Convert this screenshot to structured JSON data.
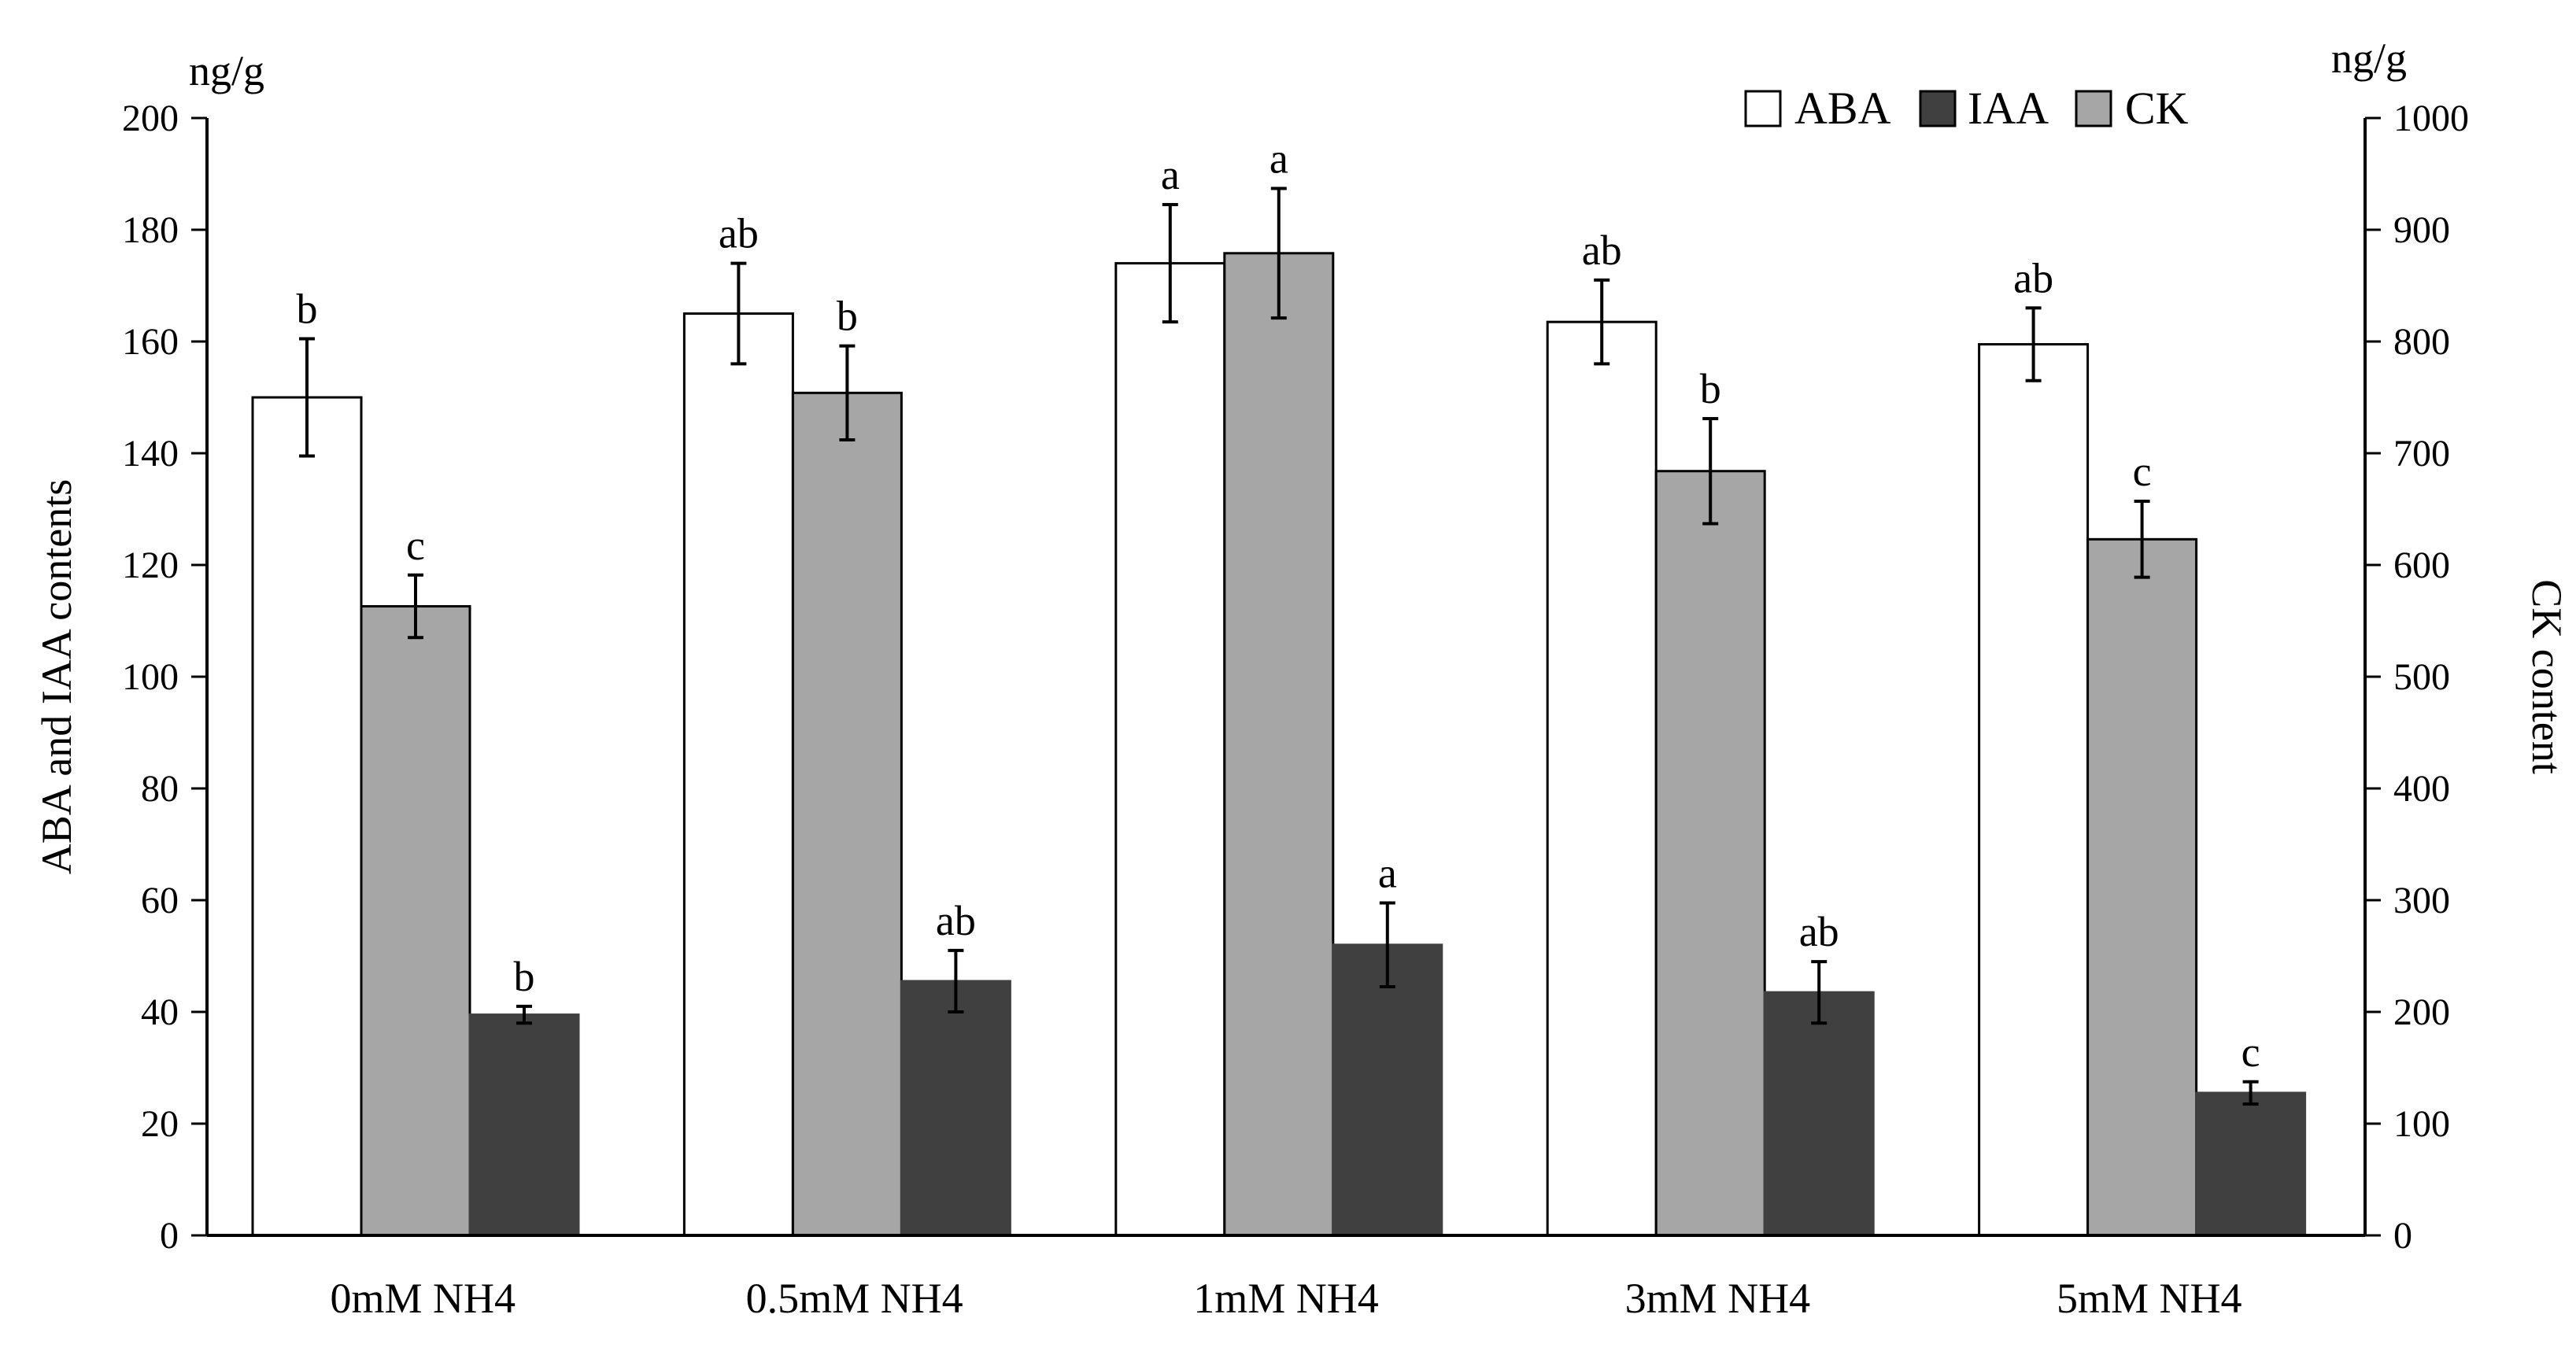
{
  "chart_data": {
    "type": "bar",
    "categories": [
      "0mM NH4",
      "0.5mM NH4",
      "1mM NH4",
      "3mM NH4",
      "5mM NH4"
    ],
    "series": [
      {
        "name": "ABA",
        "axis": "left",
        "color": "#ffffff",
        "values": [
          150,
          165,
          174,
          163.5,
          159.5
        ],
        "errors": [
          10.5,
          9,
          10.5,
          7.5,
          6.5
        ],
        "labels": [
          "b",
          "ab",
          "a",
          "ab",
          "ab"
        ]
      },
      {
        "name": "CK",
        "axis": "right",
        "color": "#a6a6a6",
        "values": [
          563,
          754,
          879,
          684,
          623
        ],
        "errors": [
          28,
          42,
          58,
          47,
          34
        ],
        "labels": [
          "c",
          "b",
          "a",
          "b",
          "c"
        ]
      },
      {
        "name": "IAA",
        "axis": "left",
        "color": "#404040",
        "values": [
          39.5,
          45.5,
          52,
          43.5,
          25.5
        ],
        "errors": [
          1.5,
          5.5,
          7.5,
          5.5,
          2
        ],
        "labels": [
          "b",
          "ab",
          "a",
          "ab",
          "c"
        ]
      }
    ],
    "legend_order": [
      "ABA",
      "IAA",
      "CK"
    ],
    "legend_position": "top-right",
    "y_left": {
      "label": "ABA and IAA contents",
      "unit": "ng/g",
      "ylim": [
        0,
        200
      ],
      "ticks": [
        0,
        20,
        40,
        60,
        80,
        100,
        120,
        140,
        160,
        180,
        200
      ]
    },
    "y_right": {
      "label": "CK content",
      "unit": "ng/g",
      "ylim": [
        0,
        1000
      ],
      "ticks": [
        0,
        100,
        200,
        300,
        400,
        500,
        600,
        700,
        800,
        900,
        1000
      ]
    },
    "grid": false
  }
}
